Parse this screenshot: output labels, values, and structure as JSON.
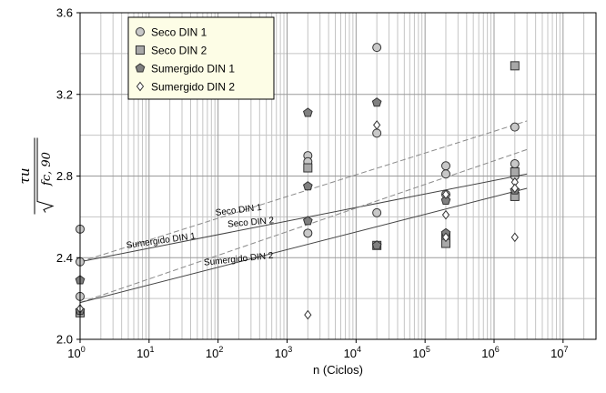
{
  "chart_data": {
    "type": "scatter",
    "title": "",
    "xlabel": "n (Ciclos)",
    "ylabel": {
      "numerator": "τu",
      "denominator": "fc, 90"
    },
    "x_scale": "log",
    "xlim": [
      1,
      30000000
    ],
    "ylim": [
      2.0,
      3.6
    ],
    "x_ticks": [
      {
        "base": "10",
        "exp": "0"
      },
      {
        "base": "10",
        "exp": "1"
      },
      {
        "base": "10",
        "exp": "2"
      },
      {
        "base": "10",
        "exp": "3"
      },
      {
        "base": "10",
        "exp": "4"
      },
      {
        "base": "10",
        "exp": "5"
      },
      {
        "base": "10",
        "exp": "6"
      },
      {
        "base": "10",
        "exp": "7"
      }
    ],
    "y_ticks": [
      "2.0",
      "2.4",
      "2.8",
      "3.2",
      "3.6"
    ],
    "grid": true,
    "legend_position": "top-left",
    "series": [
      {
        "name": "Seco DIN 1",
        "marker": "circle",
        "color": "#c8c8c8",
        "points": [
          [
            1,
            2.54
          ],
          [
            1,
            2.38
          ],
          [
            1,
            2.21
          ],
          [
            2000,
            2.9
          ],
          [
            2000,
            2.87
          ],
          [
            2000,
            2.52
          ],
          [
            20000,
            3.43
          ],
          [
            20000,
            3.01
          ],
          [
            20000,
            2.62
          ],
          [
            200000,
            2.85
          ],
          [
            200000,
            2.81
          ],
          [
            200000,
            2.71
          ],
          [
            2000000,
            3.04
          ],
          [
            2000000,
            2.86
          ],
          [
            2000000,
            2.8
          ]
        ]
      },
      {
        "name": "Seco DIN 2",
        "marker": "square",
        "color": "#a8a8a8",
        "points": [
          [
            1,
            2.13
          ],
          [
            2000,
            2.84
          ],
          [
            20000,
            2.46
          ],
          [
            200000,
            2.5
          ],
          [
            200000,
            2.47
          ],
          [
            2000000,
            3.34
          ],
          [
            2000000,
            2.82
          ],
          [
            2000000,
            2.7
          ]
        ]
      },
      {
        "name": "Sumergido DIN 1",
        "marker": "pentagon",
        "color": "#808080",
        "points": [
          [
            1,
            2.29
          ],
          [
            1,
            2.14
          ],
          [
            2000,
            3.11
          ],
          [
            2000,
            2.75
          ],
          [
            2000,
            2.58
          ],
          [
            20000,
            3.16
          ],
          [
            20000,
            2.46
          ],
          [
            200000,
            2.68
          ],
          [
            200000,
            2.52
          ],
          [
            2000000,
            2.73
          ]
        ]
      },
      {
        "name": "Sumergido DIN 2",
        "marker": "diamond",
        "color": "#ffffff",
        "points": [
          [
            1,
            2.15
          ],
          [
            2000,
            2.12
          ],
          [
            20000,
            3.05
          ],
          [
            200000,
            2.71
          ],
          [
            200000,
            2.61
          ],
          [
            200000,
            2.5
          ],
          [
            2000000,
            2.77
          ],
          [
            2000000,
            2.74
          ],
          [
            2000000,
            2.5
          ]
        ]
      }
    ],
    "fit_lines": [
      {
        "label": "Seco DIN 1",
        "style": "dashed",
        "x": [
          1,
          3000000
        ],
        "y": [
          2.38,
          3.07
        ]
      },
      {
        "label": "Seco DIN 2",
        "style": "solid",
        "x": [
          1,
          3000000
        ],
        "y": [
          2.38,
          2.81
        ]
      },
      {
        "label": "Sumergido DIN 1",
        "style": "dashed",
        "x": [
          1,
          3000000
        ],
        "y": [
          2.18,
          2.93
        ]
      },
      {
        "label": "Sumergido DIN 2",
        "style": "solid",
        "x": [
          1,
          3000000
        ],
        "y": [
          2.18,
          2.74
        ]
      }
    ],
    "line_labels": [
      {
        "text": "Seco DIN 1",
        "at": [
          200,
          2.62
        ],
        "angle": -7
      },
      {
        "text": "Seco DIN 2",
        "at": [
          300,
          2.56
        ],
        "angle": -5
      },
      {
        "text": "Sumergido DIN 1",
        "at": [
          15,
          2.47
        ],
        "angle": -8
      },
      {
        "text": "Sumergido DIN 2",
        "at": [
          200,
          2.38
        ],
        "angle": -6
      }
    ]
  }
}
